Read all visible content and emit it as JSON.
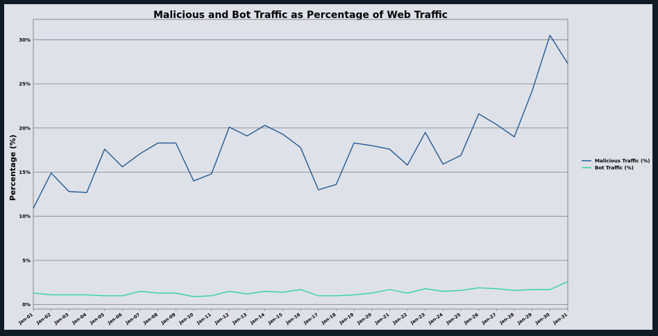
{
  "chart_data": {
    "type": "line",
    "title": "Malicious and Bot Traffic as Percentage of Web Traffic",
    "xlabel": "",
    "ylabel": "Percentage (%)",
    "categories": [
      "Jan-01",
      "Jan-02",
      "Jan-03",
      "Jan-04",
      "Jan-05",
      "Jan-06",
      "Jan-07",
      "Jan-08",
      "Jan-09",
      "Jan-10",
      "Jan-11",
      "Jan-12",
      "Jan-13",
      "Jan-14",
      "Jan-15",
      "Jan-16",
      "Jan-17",
      "Jan-18",
      "Jan-19",
      "Jan-20",
      "Jan-21",
      "Jan-22",
      "Jan-23",
      "Jan-24",
      "Jan-25",
      "Jan-26",
      "Jan-27",
      "Jan-28",
      "Jan-29",
      "Jan-30",
      "Jan-31"
    ],
    "ylim": [
      -0.5,
      32.3
    ],
    "yticks": [
      0,
      5,
      10,
      15,
      20,
      25,
      30
    ],
    "ytick_labels": [
      "0%",
      "5%",
      "10%",
      "15%",
      "20%",
      "25%",
      "30%"
    ],
    "grid": "y",
    "legend_position": "right",
    "series": [
      {
        "name": "Malicious Traffic (%)",
        "color": "#1f5a94",
        "values": [
          10.9,
          14.9,
          12.8,
          12.7,
          17.6,
          15.6,
          17.1,
          18.3,
          18.3,
          14.0,
          14.8,
          20.1,
          19.1,
          20.3,
          19.3,
          17.8,
          13.0,
          13.6,
          18.3,
          18.0,
          17.6,
          15.8,
          19.5,
          15.9,
          16.9,
          21.6,
          20.4,
          19.0,
          24.2,
          30.5,
          27.3
        ]
      },
      {
        "name": "Bot Traffic (%)",
        "color": "#2fd39a",
        "values": [
          1.3,
          1.1,
          1.1,
          1.1,
          1.0,
          1.0,
          1.5,
          1.3,
          1.3,
          0.9,
          1.0,
          1.5,
          1.2,
          1.5,
          1.4,
          1.7,
          1.0,
          1.0,
          1.1,
          1.3,
          1.7,
          1.3,
          1.8,
          1.5,
          1.6,
          1.9,
          1.8,
          1.6,
          1.7,
          1.7,
          2.6
        ]
      }
    ]
  }
}
